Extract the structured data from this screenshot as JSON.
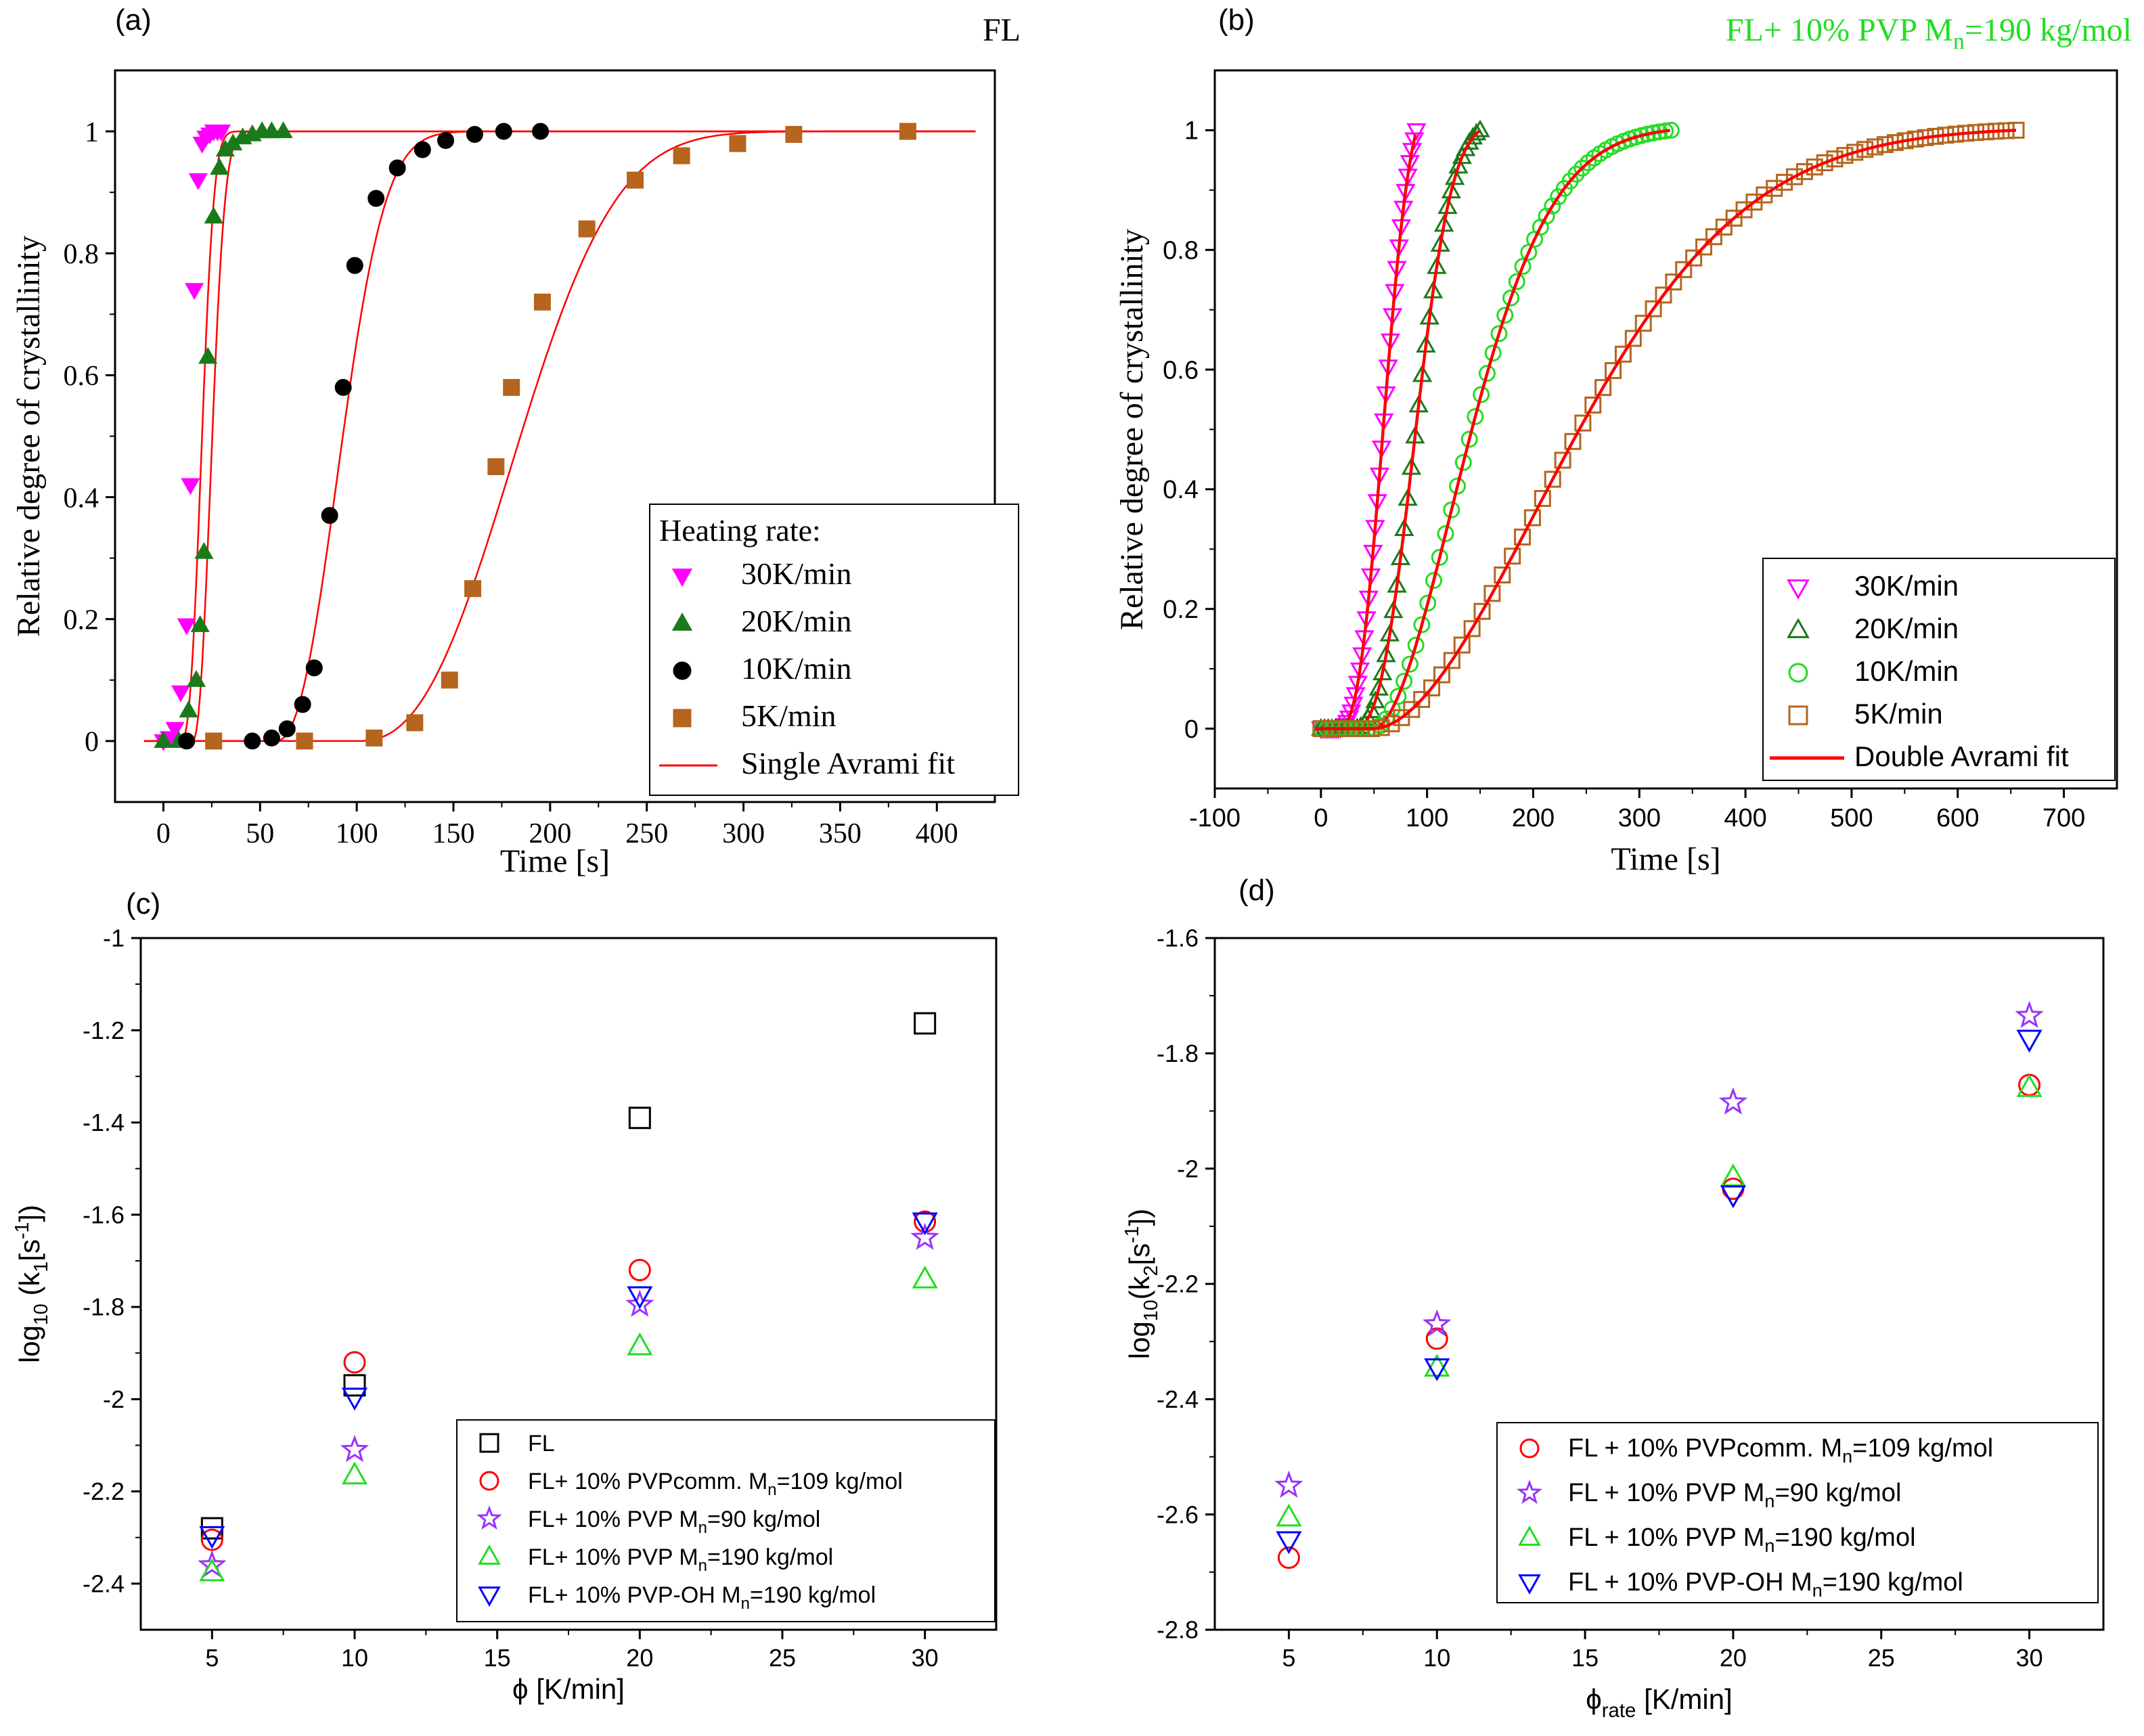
{
  "colors": {
    "magenta": "#ff00ff",
    "dark_green": "#1a7a1a",
    "black": "#000000",
    "brown": "#b5651d",
    "red": "#ff0000",
    "light_green": "#22dd22",
    "purple": "#9933ff",
    "blue": "#0000ff",
    "fl_open": "#000000"
  },
  "chart_data": [
    {
      "panel": "(a)",
      "type": "scatter",
      "title": "FL",
      "xlabel": "Time [s]",
      "ylabel": "Relative degree of crystallinity",
      "xlim": [
        -25,
        430
      ],
      "ylim": [
        -0.1,
        1.1
      ],
      "xticks": [
        0,
        50,
        100,
        150,
        200,
        250,
        300,
        350,
        400
      ],
      "yticks": [
        0,
        0.2,
        0.4,
        0.6,
        0.8,
        1
      ],
      "legend_title": "Heating rate:",
      "legend_position": "bottom-right",
      "series": [
        {
          "name": "30K/min",
          "marker": "tri-down-filled",
          "color": "#ff00ff",
          "x": [
            0,
            3,
            6,
            9,
            12,
            14,
            16,
            18,
            20,
            22,
            24,
            26,
            28,
            30
          ],
          "y": [
            0,
            0.005,
            0.02,
            0.08,
            0.19,
            0.42,
            0.74,
            0.92,
            0.98,
            0.99,
            0.995,
            1,
            1,
            1
          ]
        },
        {
          "name": "20K/min",
          "marker": "tri-up-filled",
          "color": "#1a7a1a",
          "x": [
            0,
            8,
            13,
            17,
            19,
            21,
            23,
            26,
            29,
            32,
            36,
            41,
            46,
            51,
            56,
            62
          ],
          "y": [
            0,
            0,
            0.05,
            0.1,
            0.19,
            0.31,
            0.63,
            0.86,
            0.94,
            0.97,
            0.98,
            0.99,
            0.995,
            1,
            1,
            1
          ]
        },
        {
          "name": "10K/min",
          "marker": "circle-filled",
          "color": "#000000",
          "x": [
            12,
            46,
            56,
            64,
            72,
            78,
            86,
            93,
            99,
            110,
            121,
            134,
            146,
            161,
            176,
            195
          ],
          "y": [
            0,
            0,
            0.005,
            0.02,
            0.06,
            0.12,
            0.37,
            0.58,
            0.78,
            0.89,
            0.94,
            0.97,
            0.985,
            0.995,
            1,
            1
          ]
        },
        {
          "name": "5K/min",
          "marker": "square-filled",
          "color": "#b5651d",
          "x": [
            26,
            73,
            109,
            130,
            148,
            160,
            172,
            180,
            196,
            219,
            244,
            268,
            297,
            326,
            385
          ],
          "y": [
            0,
            0,
            0.005,
            0.03,
            0.1,
            0.25,
            0.45,
            0.58,
            0.72,
            0.84,
            0.92,
            0.96,
            0.98,
            0.995,
            1
          ]
        }
      ],
      "fit": {
        "name": "Single Avrami fit",
        "color": "#ff0000",
        "curves": [
          {
            "t0": 9,
            "k": 0.079,
            "n": 2.6
          },
          {
            "t0": 15,
            "k": 0.083,
            "n": 2.3
          },
          {
            "t0": 58,
            "k": 0.0245,
            "n": 2.3
          },
          {
            "t0": 100,
            "k": 0.0102,
            "n": 2.5
          }
        ]
      }
    },
    {
      "panel": "(b)",
      "type": "scatter",
      "title": "FL+ 10% PVP M",
      "title_sub": "n",
      "title_tail": "=190 kg/mol",
      "title_color": "#22dd22",
      "xlabel": "Time [s]",
      "ylabel": "Relative degree of crystallinity",
      "xlim": [
        -100,
        750
      ],
      "ylim": [
        -0.1,
        1.1
      ],
      "xticks": [
        -100,
        0,
        100,
        200,
        300,
        400,
        500,
        600,
        700
      ],
      "yticks": [
        0,
        0.2,
        0.4,
        0.6,
        0.8,
        1
      ],
      "legend_position": "bottom-right",
      "series": [
        {
          "name": "30K/min",
          "marker": "tri-down-open",
          "color": "#ff00ff",
          "t0": 15,
          "tmax": 90,
          "k": 0.0193,
          "n": 2.7
        },
        {
          "name": "20K/min",
          "marker": "tri-up-open",
          "color": "#1a7a1a",
          "t0": 30,
          "tmax": 150,
          "k": 0.0145,
          "n": 2.6
        },
        {
          "name": "10K/min",
          "marker": "circle-open",
          "color": "#22dd22",
          "t0": 50,
          "tmax": 330,
          "k": 0.0088,
          "n": 1.8
        },
        {
          "name": "5K/min",
          "marker": "square-open",
          "color": "#b5651d",
          "t0": 50,
          "tmax": 655,
          "k": 0.0042,
          "n": 1.8
        }
      ],
      "fit": {
        "name": "Double Avrami fit",
        "color": "#ff0000"
      }
    },
    {
      "panel": "(c)",
      "type": "scatter",
      "xlabel": "ϕ [K/min]",
      "ylabel": "log",
      "ylabel_sub": "10",
      "ylabel_tail": " (k",
      "ylabel_sub2": "1",
      "ylabel_tail2": "[s",
      "ylabel_sup": "-1",
      "ylabel_end": "])",
      "xlim": [
        2.5,
        32.5
      ],
      "ylim": [
        -2.5,
        -1.0
      ],
      "xticks": [
        5,
        10,
        15,
        20,
        25,
        30
      ],
      "yticks": [
        -2.4,
        -2.2,
        -2.0,
        -1.8,
        -1.6,
        -1.4,
        -1.2,
        -1.0
      ],
      "legend_position": "bottom-right",
      "series": [
        {
          "name": "FL",
          "marker": "square-open",
          "color": "#000000",
          "x": [
            5,
            10,
            20,
            30
          ],
          "y": [
            -2.28,
            -1.97,
            -1.39,
            -1.185
          ]
        },
        {
          "name": "FL+ 10% PVPcomm. M",
          "sub": "n",
          "tail": "=109 kg/mol",
          "marker": "circle-open",
          "color": "#ff0000",
          "x": [
            5,
            10,
            20,
            30
          ],
          "y": [
            -2.305,
            -1.92,
            -1.72,
            -1.615
          ]
        },
        {
          "name": "FL+ 10% PVP M",
          "sub": "n",
          "tail": "=90 kg/mol",
          "marker": "star-open",
          "color": "#9933ff",
          "x": [
            5,
            10,
            20,
            30
          ],
          "y": [
            -2.36,
            -2.11,
            -1.795,
            -1.65
          ]
        },
        {
          "name": "FL+ 10% PVP M",
          "sub": "n",
          "tail": "=190 kg/mol",
          "marker": "tri-up-open",
          "color": "#22dd22",
          "x": [
            5,
            10,
            20,
            30
          ],
          "y": [
            -2.375,
            -2.165,
            -1.885,
            -1.74
          ]
        },
        {
          "name": "FL+ 10% PVP-OH  M",
          "sub": "n",
          "tail": "=190 kg/mol",
          "marker": "tri-down-open",
          "color": "#0000ff",
          "x": [
            5,
            10,
            20,
            30
          ],
          "y": [
            -2.295,
            -1.995,
            -1.775,
            -1.615
          ]
        }
      ]
    },
    {
      "panel": "(d)",
      "type": "scatter",
      "xlabel": "ϕ",
      "xlabel_sub": "rate",
      "xlabel_tail": " [K/min]",
      "ylabel": "log",
      "ylabel_sub": "10",
      "ylabel_tail": "(k",
      "ylabel_sub2": "2",
      "ylabel_tail2": "[s",
      "ylabel_sup": "-1",
      "ylabel_end": "])",
      "xlim": [
        2.5,
        32.5
      ],
      "ylim": [
        -2.8,
        -1.6
      ],
      "xticks": [
        5,
        10,
        15,
        20,
        25,
        30
      ],
      "yticks": [
        -2.8,
        -2.6,
        -2.4,
        -2.2,
        -2.0,
        -1.8,
        -1.6
      ],
      "legend_position": "bottom-right",
      "series": [
        {
          "name": "FL + 10% PVPcomm. M",
          "sub": "n",
          "tail": "=109 kg/mol",
          "marker": "circle-open",
          "color": "#ff0000",
          "x": [
            5,
            10,
            20,
            30
          ],
          "y": [
            -2.675,
            -2.295,
            -2.035,
            -1.855
          ]
        },
        {
          "name": "FL + 10% PVP M",
          "sub": "n",
          "tail": "=90 kg/mol",
          "marker": "star-open",
          "color": "#9933ff",
          "x": [
            5,
            10,
            20,
            30
          ],
          "y": [
            -2.55,
            -2.27,
            -1.885,
            -1.735
          ]
        },
        {
          "name": "FL + 10% PVP M",
          "sub": "n",
          "tail": "=190 kg/mol",
          "marker": "tri-up-open",
          "color": "#22dd22",
          "x": [
            5,
            10,
            20,
            30
          ],
          "y": [
            -2.605,
            -2.345,
            -2.015,
            -1.86
          ]
        },
        {
          "name": "FL + 10% PVP-OH M",
          "sub": "n",
          "tail": "=190 kg/mol",
          "marker": "tri-down-open",
          "color": "#0000ff",
          "x": [
            5,
            10,
            20,
            30
          ],
          "y": [
            -2.645,
            -2.345,
            -2.045,
            -1.775
          ]
        }
      ]
    }
  ]
}
